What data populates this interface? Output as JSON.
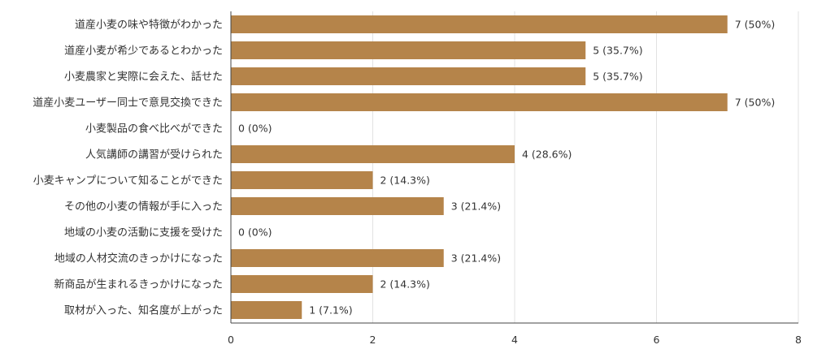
{
  "chart_data": {
    "type": "bar",
    "orientation": "horizontal",
    "categories": [
      "道産小麦の味や特徴がわかった",
      "道産小麦が希少であるとわかった",
      "小麦農家と実際に会えた、話せた",
      "道産小麦ユーザー同士で意見交換できた",
      "小麦製品の食べ比べができた",
      "人気講師の講習が受けられた",
      "小麦キャンプについて知ることができた",
      "その他の小麦の情報が手に入った",
      "地域の小麦の活動に支援を受けた",
      "地域の人材交流のきっかけになった",
      "新商品が生まれるきっかけになった",
      "取材が入った、知名度が上がった"
    ],
    "values": [
      7,
      5,
      5,
      7,
      0,
      4,
      2,
      3,
      0,
      3,
      2,
      1
    ],
    "value_labels": [
      "7 (50%)",
      "5 (35.7%)",
      "5 (35.7%)",
      "7 (50%)",
      "0 (0%)",
      "4 (28.6%)",
      "2 (14.3%)",
      "3 (21.4%)",
      "0 (0%)",
      "3 (21.4%)",
      "2 (14.3%)",
      "1 (7.1%)"
    ],
    "xlim": [
      0,
      8
    ],
    "x_ticks": [
      "0",
      "2",
      "4",
      "6",
      "8"
    ],
    "grid": true,
    "bar_color": "#b5844a",
    "title": "",
    "xlabel": "",
    "ylabel": ""
  }
}
